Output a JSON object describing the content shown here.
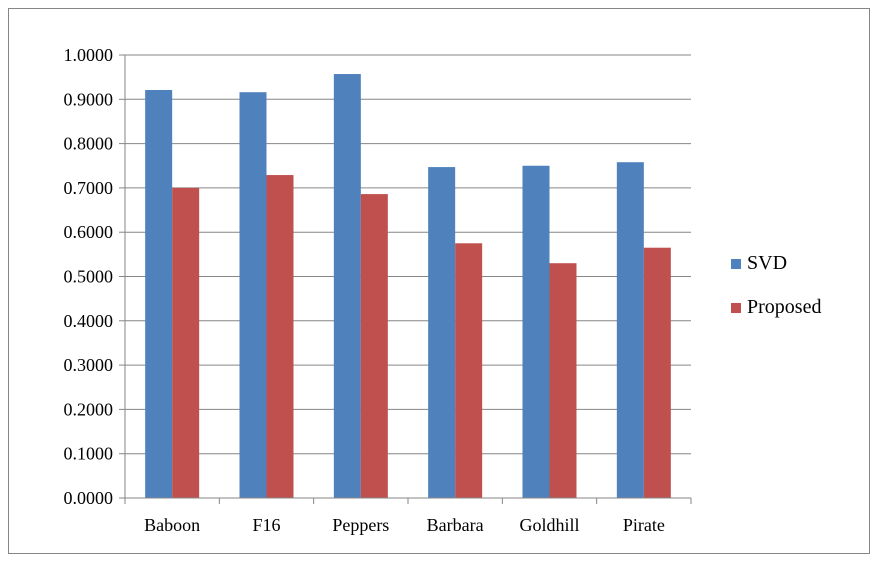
{
  "chart_data": {
    "type": "bar",
    "categories": [
      "Baboon",
      "F16",
      "Peppers",
      "Barbara",
      "Goldhill",
      "Pirate"
    ],
    "series": [
      {
        "name": "SVD",
        "color": "#4F81BD",
        "values": [
          0.921,
          0.916,
          0.957,
          0.747,
          0.75,
          0.758
        ]
      },
      {
        "name": "Proposed",
        "color": "#C0504D",
        "values": [
          0.7,
          0.729,
          0.686,
          0.575,
          0.53,
          0.565
        ]
      }
    ],
    "ylim": [
      0,
      1
    ],
    "yticks": [
      0,
      0.1,
      0.2,
      0.3,
      0.4,
      0.5,
      0.6,
      0.7,
      0.8,
      0.9,
      1.0
    ],
    "ytick_labels": [
      "0.0000",
      "0.1000",
      "0.2000",
      "0.3000",
      "0.4000",
      "0.5000",
      "0.6000",
      "0.7000",
      "0.8000",
      "0.9000",
      "1.0000"
    ],
    "grid": true,
    "legend_position": "right",
    "title": "",
    "xlabel": "",
    "ylabel": ""
  },
  "caption": ""
}
